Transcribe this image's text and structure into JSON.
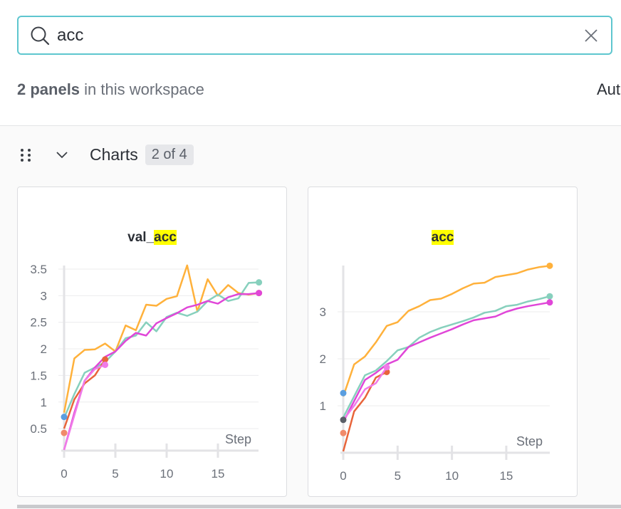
{
  "search": {
    "value": "acc",
    "icon": "search-icon",
    "clear_icon": "close-icon"
  },
  "summary": {
    "count": "2 panels",
    "suffix": " in this workspace",
    "right_label": "Aut"
  },
  "section": {
    "title": "Charts",
    "badge": "2 of 4",
    "drag_icon": "drag-handle-icon",
    "collapse_icon": "chevron-down-icon"
  },
  "colors": {
    "accent": "#5ec6cf",
    "highlight": "#ffff00",
    "orange": "#ffb13b",
    "teal": "#87d0bd",
    "magenta": "#e046d8",
    "red": "#e8643a",
    "pink": "#f07be8",
    "blue": "#5a9ee0",
    "gray": "#5a5f68",
    "salmon": "#f08a6a"
  },
  "chart_data": [
    {
      "type": "line",
      "title_prefix": "val_",
      "title_match": "acc",
      "xlabel": "Step",
      "xlim": [
        0,
        19
      ],
      "ylim": [
        0.1,
        3.6
      ],
      "xticks": [
        "0",
        "5",
        "10",
        "15"
      ],
      "yticks": [
        "0.5",
        "1",
        "1.5",
        "2",
        "2.5",
        "3",
        "3.5"
      ],
      "ytick_values": [
        0.5,
        1,
        1.5,
        2,
        2.5,
        3,
        3.5
      ],
      "grid": true,
      "series": [
        {
          "color": "orange",
          "values": [
            0.8,
            1.82,
            1.98,
            1.99,
            2.1,
            1.95,
            2.44,
            2.35,
            2.83,
            2.81,
            2.94,
            2.99,
            3.57,
            2.7,
            3.31,
            3.0,
            3.2,
            3.05,
            3.02,
            3.05
          ]
        },
        {
          "color": "teal",
          "values": [
            0.7,
            1.15,
            1.55,
            1.65,
            1.75,
            1.95,
            2.2,
            2.25,
            2.5,
            2.33,
            2.6,
            2.68,
            2.62,
            2.7,
            2.9,
            3.02,
            2.9,
            2.95,
            3.24,
            3.25
          ]
        },
        {
          "color": "magenta",
          "values": [
            0.1,
            0.8,
            1.4,
            1.65,
            1.85,
            1.95,
            2.15,
            2.3,
            2.25,
            2.48,
            2.58,
            2.67,
            2.78,
            2.83,
            2.9,
            2.85,
            2.97,
            3.03,
            3.03,
            3.05
          ]
        },
        {
          "color": "red",
          "values": [
            0.5,
            1.05,
            1.35,
            1.5,
            1.8
          ]
        },
        {
          "color": "pink",
          "values": [
            0.1,
            0.75,
            1.4,
            1.62,
            1.7
          ]
        },
        {
          "color": "blue",
          "values": [
            0.72
          ]
        },
        {
          "color": "salmon",
          "values": [
            0.42
          ]
        }
      ]
    },
    {
      "type": "line",
      "title_prefix": "",
      "title_match": "acc",
      "xlabel": "Step",
      "xlim": [
        0,
        19
      ],
      "ylim": [
        0,
        4
      ],
      "xticks": [
        "0",
        "5",
        "10",
        "15"
      ],
      "yticks": [
        "1",
        "2",
        "3"
      ],
      "ytick_values": [
        1,
        2,
        3
      ],
      "grid": true,
      "series": [
        {
          "color": "orange",
          "values": [
            1.2,
            1.88,
            2.05,
            2.35,
            2.7,
            2.78,
            3.02,
            3.12,
            3.25,
            3.28,
            3.38,
            3.5,
            3.6,
            3.62,
            3.74,
            3.78,
            3.82,
            3.9,
            3.95,
            3.98
          ]
        },
        {
          "color": "teal",
          "values": [
            0.75,
            1.2,
            1.65,
            1.75,
            1.95,
            2.18,
            2.25,
            2.45,
            2.57,
            2.66,
            2.73,
            2.8,
            2.88,
            2.98,
            3.02,
            3.12,
            3.15,
            3.22,
            3.27,
            3.33
          ]
        },
        {
          "color": "magenta",
          "values": [
            0.65,
            1.1,
            1.55,
            1.7,
            1.88,
            1.98,
            2.25,
            2.35,
            2.45,
            2.54,
            2.63,
            2.73,
            2.82,
            2.86,
            2.9,
            3.0,
            3.07,
            3.12,
            3.16,
            3.2
          ]
        },
        {
          "color": "red",
          "values": [
            0.03,
            0.88,
            1.17,
            1.6,
            1.72
          ]
        },
        {
          "color": "pink",
          "values": [
            0.7,
            1.0,
            1.35,
            1.48,
            1.82
          ]
        },
        {
          "color": "blue",
          "values": [
            1.27
          ]
        },
        {
          "color": "gray",
          "values": [
            0.7
          ]
        },
        {
          "color": "salmon",
          "values": [
            0.42
          ]
        }
      ]
    }
  ]
}
